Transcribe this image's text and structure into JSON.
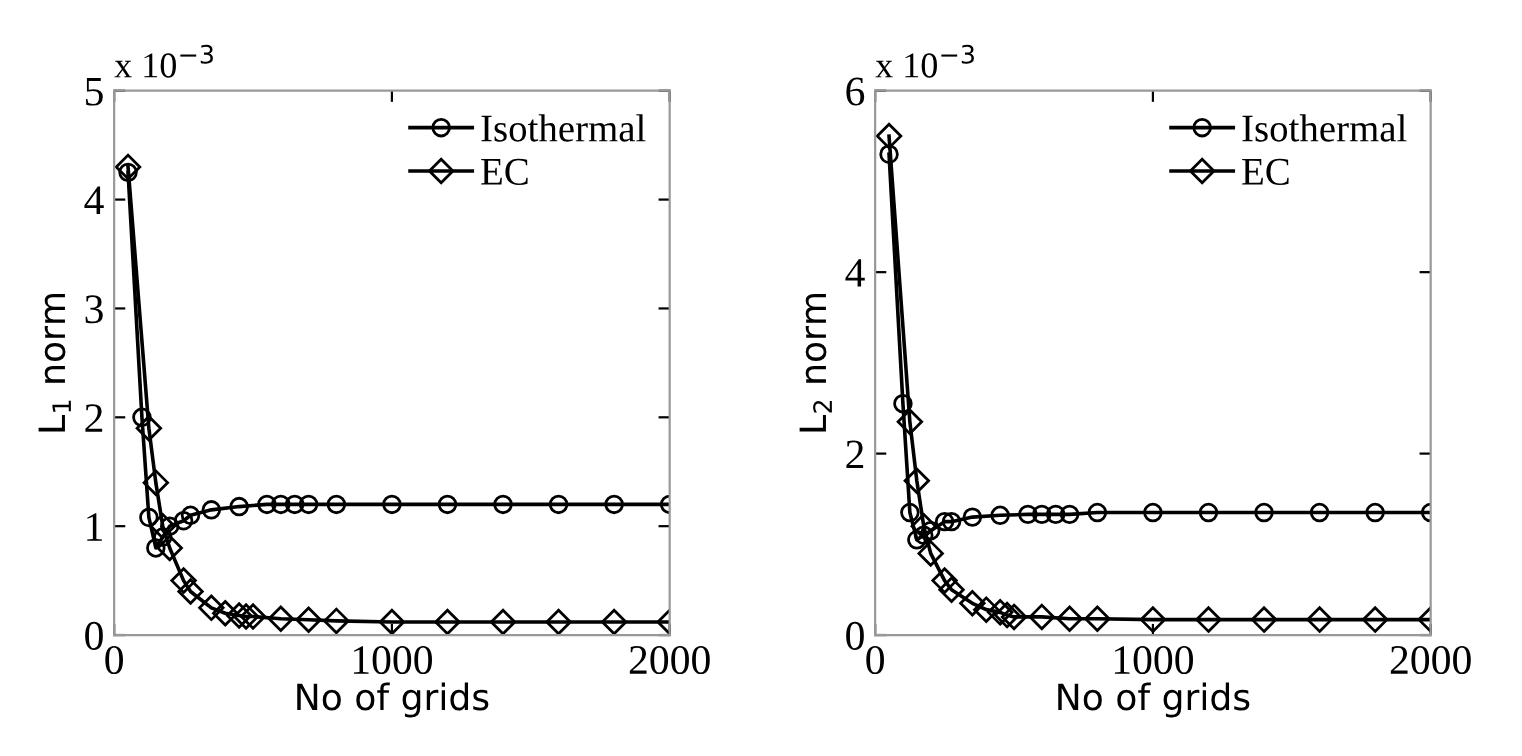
{
  "chart_data": [
    {
      "type": "line",
      "xlabel": "No of grids",
      "ylabel": "L$_{1}$ norm",
      "annotations": [
        "x 10$^{−3}$"
      ],
      "xlim": [
        0,
        2000
      ],
      "xticks": [
        0,
        1000,
        2000
      ],
      "ylim": [
        0,
        5
      ],
      "yticks": [
        0,
        1,
        2,
        3,
        4,
        5
      ],
      "legend": "top right",
      "grid": false,
      "series": [
        {
          "name": "Isothermal",
          "color": "#000000",
          "marker": "circle",
          "x": [
            50,
            100,
            125,
            150,
            175,
            200,
            250,
            275,
            350,
            450,
            550,
            600,
            650,
            700,
            800,
            1000,
            1200,
            1400,
            1600,
            1800,
            2000
          ],
          "values": [
            4.25,
            2.0,
            1.08,
            0.8,
            0.9,
            1.0,
            1.05,
            1.1,
            1.15,
            1.18,
            1.2,
            1.2,
            1.2,
            1.2,
            1.2,
            1.2,
            1.2,
            1.2,
            1.2,
            1.2,
            1.2
          ]
        },
        {
          "name": "EC",
          "color": "#000000",
          "marker": "diamond",
          "x": [
            50,
            125,
            150,
            175,
            200,
            250,
            275,
            350,
            400,
            450,
            475,
            500,
            600,
            700,
            800,
            1000,
            1200,
            1400,
            1600,
            1800,
            2000
          ],
          "values": [
            4.3,
            1.9,
            1.4,
            1.0,
            0.8,
            0.5,
            0.4,
            0.25,
            0.2,
            0.18,
            0.17,
            0.17,
            0.15,
            0.14,
            0.13,
            0.12,
            0.12,
            0.12,
            0.12,
            0.12,
            0.12
          ]
        }
      ]
    },
    {
      "type": "line",
      "xlabel": "No of grids",
      "ylabel": "L$_{2}$ norm",
      "annotations": [
        "x 10$^{−3}$"
      ],
      "xlim": [
        0,
        2000
      ],
      "xticks": [
        0,
        1000,
        2000
      ],
      "ylim": [
        0,
        6
      ],
      "yticks": [
        0,
        2,
        4,
        6
      ],
      "legend": "top right",
      "grid": false,
      "series": [
        {
          "name": "Isothermal",
          "color": "#000000",
          "marker": "circle",
          "x": [
            50,
            100,
            125,
            150,
            175,
            200,
            250,
            275,
            350,
            450,
            550,
            600,
            650,
            700,
            800,
            1000,
            1200,
            1400,
            1600,
            1800,
            2000
          ],
          "values": [
            5.3,
            2.55,
            1.35,
            1.05,
            1.1,
            1.15,
            1.25,
            1.25,
            1.3,
            1.32,
            1.33,
            1.33,
            1.33,
            1.33,
            1.35,
            1.35,
            1.35,
            1.35,
            1.35,
            1.35,
            1.35
          ]
        },
        {
          "name": "EC",
          "color": "#000000",
          "marker": "diamond",
          "x": [
            50,
            125,
            150,
            175,
            200,
            250,
            275,
            350,
            400,
            450,
            475,
            500,
            600,
            700,
            800,
            1000,
            1200,
            1400,
            1600,
            1800,
            2000
          ],
          "values": [
            5.5,
            2.35,
            1.7,
            1.2,
            0.9,
            0.6,
            0.5,
            0.35,
            0.28,
            0.25,
            0.22,
            0.2,
            0.2,
            0.18,
            0.18,
            0.17,
            0.17,
            0.17,
            0.17,
            0.17,
            0.17
          ]
        }
      ]
    }
  ]
}
